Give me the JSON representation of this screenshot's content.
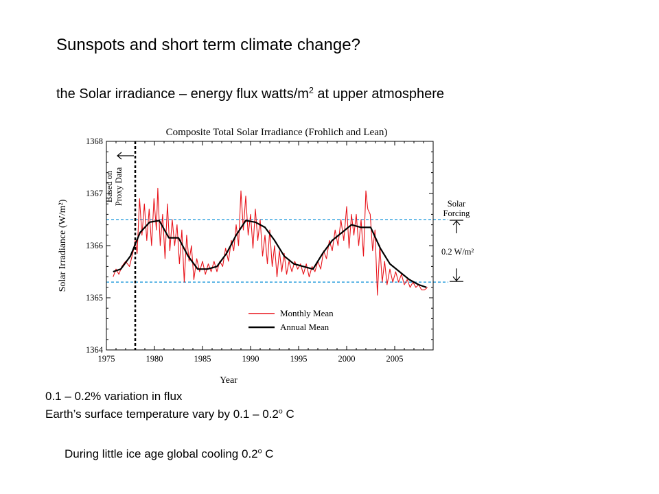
{
  "slide": {
    "title": "Sunspots and short term climate change?",
    "subtitle_main": "the Solar irradiance – energy flux watts/m",
    "subtitle_sup": "2",
    "subtitle_rest": " at upper atmosphere",
    "note1": "0.1 – 0.2% variation in flux",
    "note2_main": "Earth’s surface temperature vary  by 0.1 – 0.2",
    "note2_sup": "o",
    "note2_rest": " C",
    "note3_main": "During little ice age global cooling 0.2",
    "note3_sup": "o",
    "note3_rest": " C"
  },
  "chart_data": {
    "type": "line",
    "title": "Composite Total Solar Irradiance (Frohlich and Lean)",
    "xlabel": "Year",
    "ylabel": "Solar Irradiance (W/m²)",
    "xlim": [
      1975,
      2009
    ],
    "ylim": [
      1364,
      1368
    ],
    "xticks": [
      1975,
      1980,
      1985,
      1990,
      1995,
      2000,
      2005
    ],
    "yticks": [
      1364,
      1365,
      1366,
      1367,
      1368
    ],
    "legend": {
      "position": "bottom-right",
      "entries": [
        "Monthly Mean",
        "Annual Mean"
      ]
    },
    "annotations": {
      "proxy_line_year": 1978,
      "proxy_text_line1": "Based on",
      "proxy_text_line2": "Proxy Data",
      "solar_forcing_line1": "Solar",
      "solar_forcing_line2": "Forcing",
      "forcing_amount": "0.2 W/m²",
      "dashed_levels": [
        1366.5,
        1365.3
      ]
    },
    "series": [
      {
        "name": "Annual Mean",
        "color": "#000000",
        "x": [
          1975.7,
          1976.5,
          1977.5,
          1978.5,
          1979.5,
          1980.5,
          1981.5,
          1982.5,
          1983.5,
          1984.5,
          1985.5,
          1986.5,
          1987.5,
          1988.5,
          1989.5,
          1990.5,
          1991.5,
          1992.5,
          1993.5,
          1994.5,
          1995.5,
          1996.5,
          1997.5,
          1998.5,
          1999.5,
          2000.5,
          2001.5,
          2002.5,
          2003.5,
          2004.5,
          2005.5,
          2006.5,
          2007.5,
          2008.3
        ],
        "values": [
          1365.5,
          1365.55,
          1365.8,
          1366.25,
          1366.45,
          1366.48,
          1366.15,
          1366.15,
          1365.8,
          1365.55,
          1365.55,
          1365.6,
          1365.85,
          1366.2,
          1366.48,
          1366.45,
          1366.35,
          1366.1,
          1365.8,
          1365.65,
          1365.6,
          1365.55,
          1365.85,
          1366.1,
          1366.25,
          1366.4,
          1366.35,
          1366.35,
          1365.95,
          1365.65,
          1365.5,
          1365.35,
          1365.25,
          1365.2
        ]
      },
      {
        "name": "Monthly Mean",
        "color": "#e8141b",
        "x": [
          1975.7,
          1976.0,
          1976.3,
          1976.6,
          1977.0,
          1977.4,
          1977.8,
          1978.0,
          1978.2,
          1978.45,
          1978.7,
          1978.95,
          1979.2,
          1979.45,
          1979.7,
          1979.95,
          1980.2,
          1980.35,
          1980.6,
          1980.85,
          1981.1,
          1981.35,
          1981.6,
          1981.85,
          1982.1,
          1982.35,
          1982.6,
          1982.85,
          1983.1,
          1983.35,
          1983.6,
          1983.85,
          1984.1,
          1984.4,
          1984.7,
          1985.0,
          1985.3,
          1985.6,
          1985.9,
          1986.2,
          1986.5,
          1986.8,
          1987.1,
          1987.4,
          1987.7,
          1988.0,
          1988.25,
          1988.5,
          1988.75,
          1989.0,
          1989.25,
          1989.5,
          1989.75,
          1990.0,
          1990.25,
          1990.5,
          1990.75,
          1991.0,
          1991.25,
          1991.5,
          1991.75,
          1992.0,
          1992.25,
          1992.5,
          1992.75,
          1993.0,
          1993.25,
          1993.5,
          1993.75,
          1994.0,
          1994.3,
          1994.6,
          1994.9,
          1995.2,
          1995.5,
          1995.8,
          1996.1,
          1996.4,
          1996.7,
          1997.0,
          1997.3,
          1997.6,
          1997.9,
          1998.2,
          1998.5,
          1998.8,
          1999.1,
          1999.4,
          1999.7,
          2000.0,
          2000.25,
          2000.5,
          2000.75,
          2001.0,
          2001.25,
          2001.5,
          2001.75,
          2002.0,
          2002.2,
          2002.45,
          2002.7,
          2002.95,
          2003.2,
          2003.45,
          2003.7,
          2003.95,
          2004.2,
          2004.5,
          2004.8,
          2005.1,
          2005.4,
          2005.7,
          2006.0,
          2006.3,
          2006.6,
          2006.9,
          2007.2,
          2007.5,
          2007.8,
          2008.1,
          2008.4
        ],
        "values": [
          1365.4,
          1365.55,
          1365.45,
          1365.6,
          1365.7,
          1365.6,
          1365.9,
          1366.1,
          1365.85,
          1366.9,
          1366.2,
          1366.8,
          1366.1,
          1366.7,
          1366.0,
          1366.9,
          1366.3,
          1367.1,
          1366.0,
          1366.6,
          1365.75,
          1366.8,
          1365.9,
          1366.5,
          1366.0,
          1366.4,
          1365.65,
          1366.3,
          1365.3,
          1366.2,
          1365.7,
          1366.0,
          1365.35,
          1365.75,
          1365.5,
          1365.7,
          1365.45,
          1365.65,
          1365.5,
          1365.7,
          1365.5,
          1365.7,
          1365.6,
          1365.95,
          1365.7,
          1366.1,
          1365.9,
          1366.4,
          1366.0,
          1367.05,
          1366.3,
          1366.95,
          1366.2,
          1366.6,
          1365.95,
          1366.7,
          1366.1,
          1366.5,
          1365.8,
          1366.2,
          1365.65,
          1366.3,
          1365.6,
          1366.0,
          1365.4,
          1365.9,
          1365.5,
          1365.85,
          1365.45,
          1365.7,
          1365.5,
          1365.7,
          1365.55,
          1365.65,
          1365.45,
          1365.65,
          1365.4,
          1365.6,
          1365.5,
          1365.7,
          1365.55,
          1365.9,
          1365.75,
          1366.1,
          1365.9,
          1366.3,
          1366.0,
          1366.5,
          1366.1,
          1366.75,
          1365.95,
          1366.6,
          1366.2,
          1366.6,
          1366.0,
          1366.5,
          1365.8,
          1367.05,
          1366.7,
          1366.6,
          1365.9,
          1366.3,
          1365.05,
          1366.0,
          1365.3,
          1365.7,
          1365.25,
          1365.55,
          1365.3,
          1365.5,
          1365.3,
          1365.45,
          1365.25,
          1365.35,
          1365.2,
          1365.3,
          1365.2,
          1365.25,
          1365.15,
          1365.15,
          1365.2
        ]
      }
    ]
  }
}
